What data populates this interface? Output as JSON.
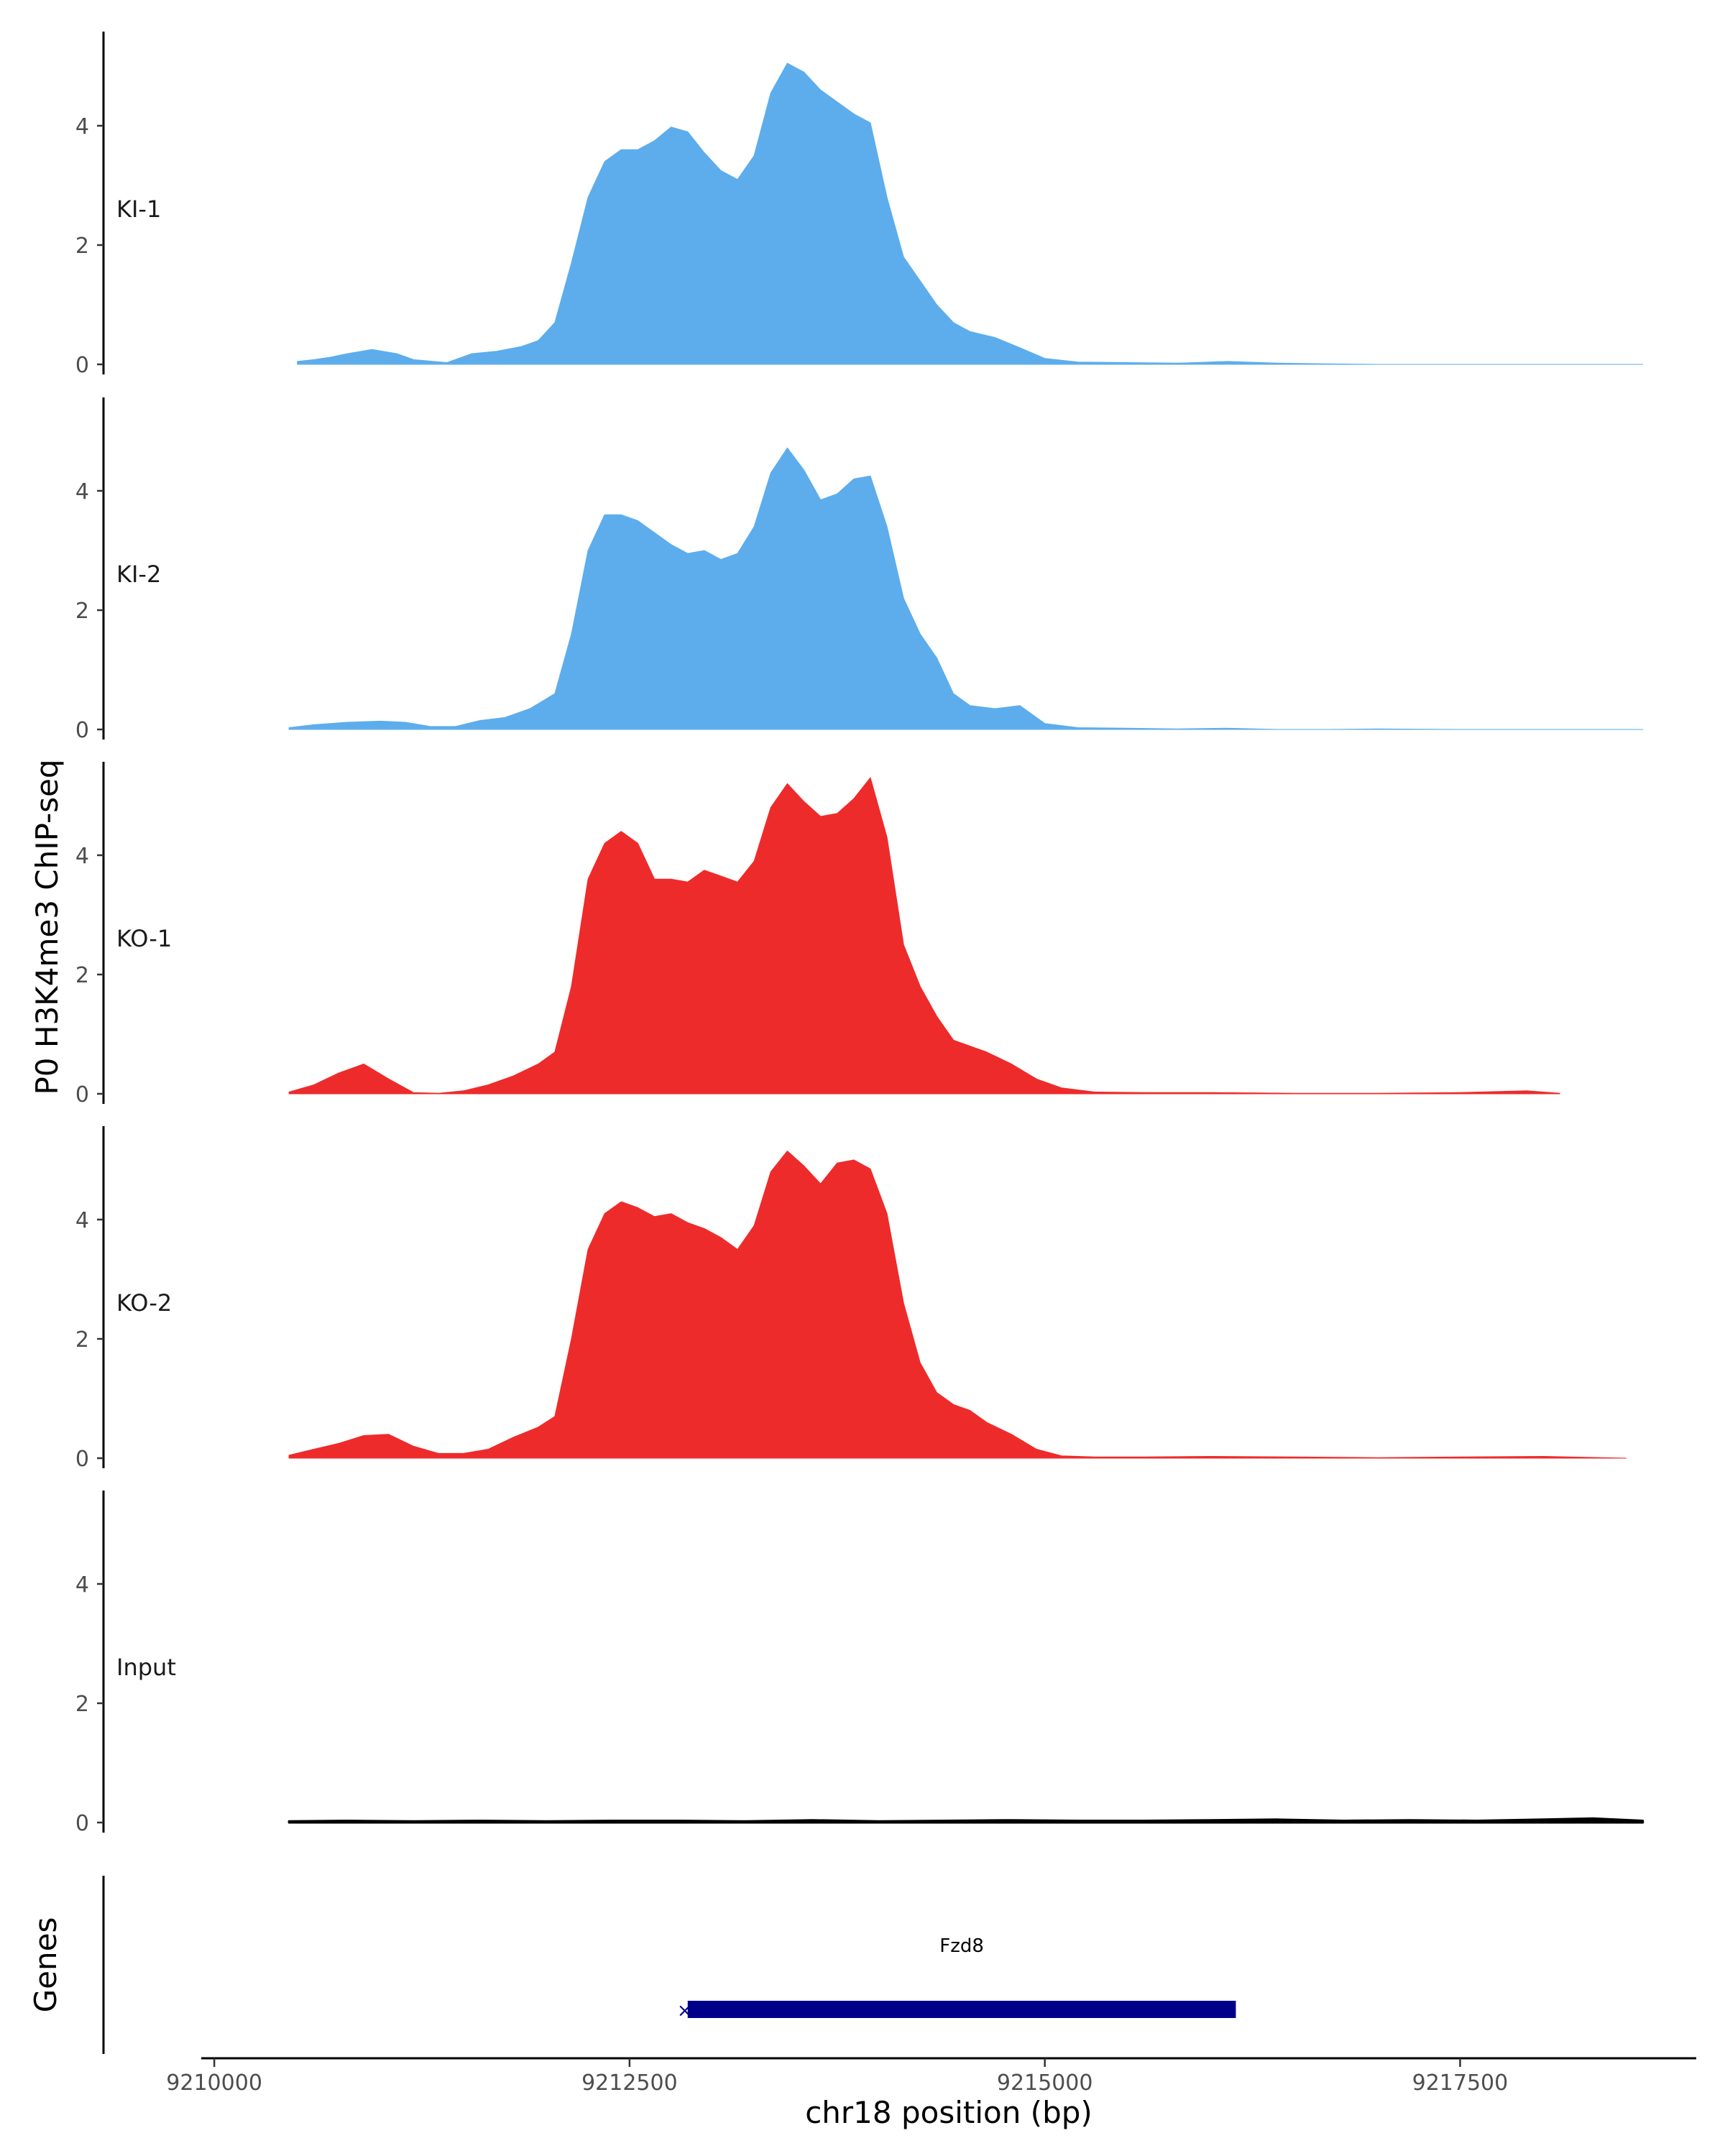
{
  "chart_data": {
    "type": "area",
    "ylabel": "P0 H3K4me3 ChIP-seq",
    "xlabel": "chr18 position (bp)",
    "xlim": [
      9209900,
      9218900
    ],
    "ylim": [
      0,
      5.6
    ],
    "x_ticks": [
      9210000,
      9212500,
      9215000,
      9217500
    ],
    "x_tick_labels": [
      "9210000",
      "9212500",
      "9215000",
      "9217500"
    ],
    "y_ticks": [
      0,
      2,
      4
    ],
    "y_tick_labels": [
      "0",
      "2",
      "4"
    ],
    "grid": false,
    "series": [
      {
        "name": "KI-1",
        "color": "#5DADEC",
        "x": [
          9210500,
          9210600,
          9210700,
          9210800,
          9210950,
          9211100,
          9211200,
          9211400,
          9211550,
          9211700,
          9211850,
          9211950,
          9212050,
          9212150,
          9212250,
          9212350,
          9212450,
          9212550,
          9212650,
          9212750,
          9212850,
          9212950,
          9213050,
          9213150,
          9213250,
          9213350,
          9213450,
          9213550,
          9213650,
          9213750,
          9213850,
          9213950,
          9214050,
          9214150,
          9214250,
          9214350,
          9214450,
          9214550,
          9214700,
          9214850,
          9215000,
          9215200,
          9215500,
          9215800,
          9216100,
          9216400,
          9216700,
          9217000,
          9217500,
          9218000,
          9218300,
          9218600
        ],
        "values": [
          0.05,
          0.08,
          0.12,
          0.18,
          0.25,
          0.18,
          0.08,
          0.03,
          0.18,
          0.22,
          0.3,
          0.4,
          0.7,
          1.7,
          2.8,
          3.4,
          3.6,
          3.6,
          3.75,
          3.98,
          3.9,
          3.55,
          3.25,
          3.1,
          3.5,
          4.55,
          5.05,
          4.9,
          4.6,
          4.4,
          4.2,
          4.05,
          2.8,
          1.8,
          1.4,
          1.0,
          0.7,
          0.55,
          0.45,
          0.28,
          0.1,
          0.04,
          0.03,
          0.02,
          0.05,
          0.02,
          0.01,
          0.0,
          0.0,
          0.0,
          0.0,
          0.0
        ]
      },
      {
        "name": "KI-2",
        "color": "#5DADEC",
        "x": [
          9210450,
          9210600,
          9210800,
          9211000,
          9211150,
          9211300,
          9211450,
          9211600,
          9211750,
          9211900,
          9212050,
          9212150,
          9212250,
          9212350,
          9212450,
          9212550,
          9212650,
          9212750,
          9212850,
          9212950,
          9213050,
          9213150,
          9213250,
          9213350,
          9213450,
          9213550,
          9213650,
          9213750,
          9213850,
          9213950,
          9214050,
          9214150,
          9214250,
          9214350,
          9214450,
          9214550,
          9214700,
          9214850,
          9215000,
          9215200,
          9215500,
          9215800,
          9216100,
          9216400,
          9216700,
          9217000,
          9217500,
          9218000,
          9218300,
          9218600
        ],
        "values": [
          0.03,
          0.08,
          0.12,
          0.14,
          0.12,
          0.05,
          0.05,
          0.15,
          0.2,
          0.35,
          0.6,
          1.6,
          3.0,
          3.6,
          3.6,
          3.5,
          3.3,
          3.1,
          2.95,
          3.0,
          2.85,
          2.95,
          3.4,
          4.3,
          4.72,
          4.35,
          3.85,
          3.95,
          4.2,
          4.25,
          3.4,
          2.2,
          1.6,
          1.2,
          0.6,
          0.4,
          0.35,
          0.4,
          0.1,
          0.03,
          0.02,
          0.01,
          0.02,
          0.0,
          0.0,
          0.01,
          0.0,
          0.0,
          0.0,
          0.0
        ]
      },
      {
        "name": "KO-1",
        "color": "#EE2B2B",
        "x": [
          9210450,
          9210600,
          9210750,
          9210900,
          9211050,
          9211200,
          9211350,
          9211500,
          9211650,
          9211800,
          9211950,
          9212050,
          9212150,
          9212250,
          9212350,
          9212450,
          9212550,
          9212650,
          9212750,
          9212850,
          9212950,
          9213050,
          9213150,
          9213250,
          9213350,
          9213450,
          9213550,
          9213650,
          9213750,
          9213850,
          9213950,
          9214050,
          9214150,
          9214250,
          9214350,
          9214450,
          9214550,
          9214650,
          9214800,
          9214950,
          9215100,
          9215300,
          9215600,
          9216000,
          9216500,
          9217000,
          9217500,
          9217900,
          9218100
        ],
        "values": [
          0.03,
          0.15,
          0.35,
          0.5,
          0.25,
          0.02,
          0.01,
          0.05,
          0.15,
          0.3,
          0.5,
          0.7,
          1.8,
          3.6,
          4.2,
          4.4,
          4.2,
          3.6,
          3.6,
          3.55,
          3.75,
          3.65,
          3.55,
          3.9,
          4.8,
          5.2,
          4.9,
          4.65,
          4.7,
          4.95,
          5.3,
          4.3,
          2.5,
          1.8,
          1.3,
          0.9,
          0.8,
          0.7,
          0.5,
          0.25,
          0.1,
          0.03,
          0.02,
          0.02,
          0.01,
          0.01,
          0.02,
          0.05,
          0.01
        ]
      },
      {
        "name": "KO-2",
        "color": "#EE2B2B",
        "x": [
          9210450,
          9210600,
          9210750,
          9210900,
          9211050,
          9211200,
          9211350,
          9211500,
          9211650,
          9211800,
          9211950,
          9212050,
          9212150,
          9212250,
          9212350,
          9212450,
          9212550,
          9212650,
          9212750,
          9212850,
          9212950,
          9213050,
          9213150,
          9213250,
          9213350,
          9213450,
          9213550,
          9213650,
          9213750,
          9213850,
          9213950,
          9214050,
          9214150,
          9214250,
          9214350,
          9214450,
          9214550,
          9214650,
          9214800,
          9214950,
          9215100,
          9215300,
          9215600,
          9216000,
          9216500,
          9217000,
          9217500,
          9218000,
          9218500
        ],
        "values": [
          0.05,
          0.15,
          0.25,
          0.38,
          0.4,
          0.2,
          0.08,
          0.08,
          0.15,
          0.35,
          0.52,
          0.7,
          2.0,
          3.5,
          4.1,
          4.3,
          4.2,
          4.05,
          4.1,
          3.95,
          3.85,
          3.7,
          3.5,
          3.9,
          4.8,
          5.15,
          4.9,
          4.6,
          4.95,
          5.0,
          4.85,
          4.1,
          2.6,
          1.6,
          1.1,
          0.9,
          0.8,
          0.6,
          0.4,
          0.15,
          0.04,
          0.02,
          0.02,
          0.03,
          0.02,
          0.01,
          0.02,
          0.03,
          0.0
        ]
      },
      {
        "name": "Input",
        "color": "#000000",
        "x": [
          9210450,
          9210800,
          9211200,
          9211600,
          9212000,
          9212400,
          9212800,
          9213200,
          9213600,
          9214000,
          9214400,
          9214800,
          9215200,
          9215600,
          9216000,
          9216400,
          9216800,
          9217200,
          9217600,
          9218000,
          9218300,
          9218600
        ],
        "values": [
          0.02,
          0.03,
          0.02,
          0.03,
          0.02,
          0.03,
          0.03,
          0.02,
          0.04,
          0.02,
          0.03,
          0.04,
          0.03,
          0.03,
          0.04,
          0.05,
          0.03,
          0.04,
          0.03,
          0.05,
          0.07,
          0.03
        ]
      }
    ],
    "genes_track": {
      "label": "Genes",
      "color": "#00008B",
      "genes": [
        {
          "name": "Fzd8",
          "start": 9212850,
          "end": 9216150,
          "strand_marker": "×"
        }
      ]
    }
  }
}
